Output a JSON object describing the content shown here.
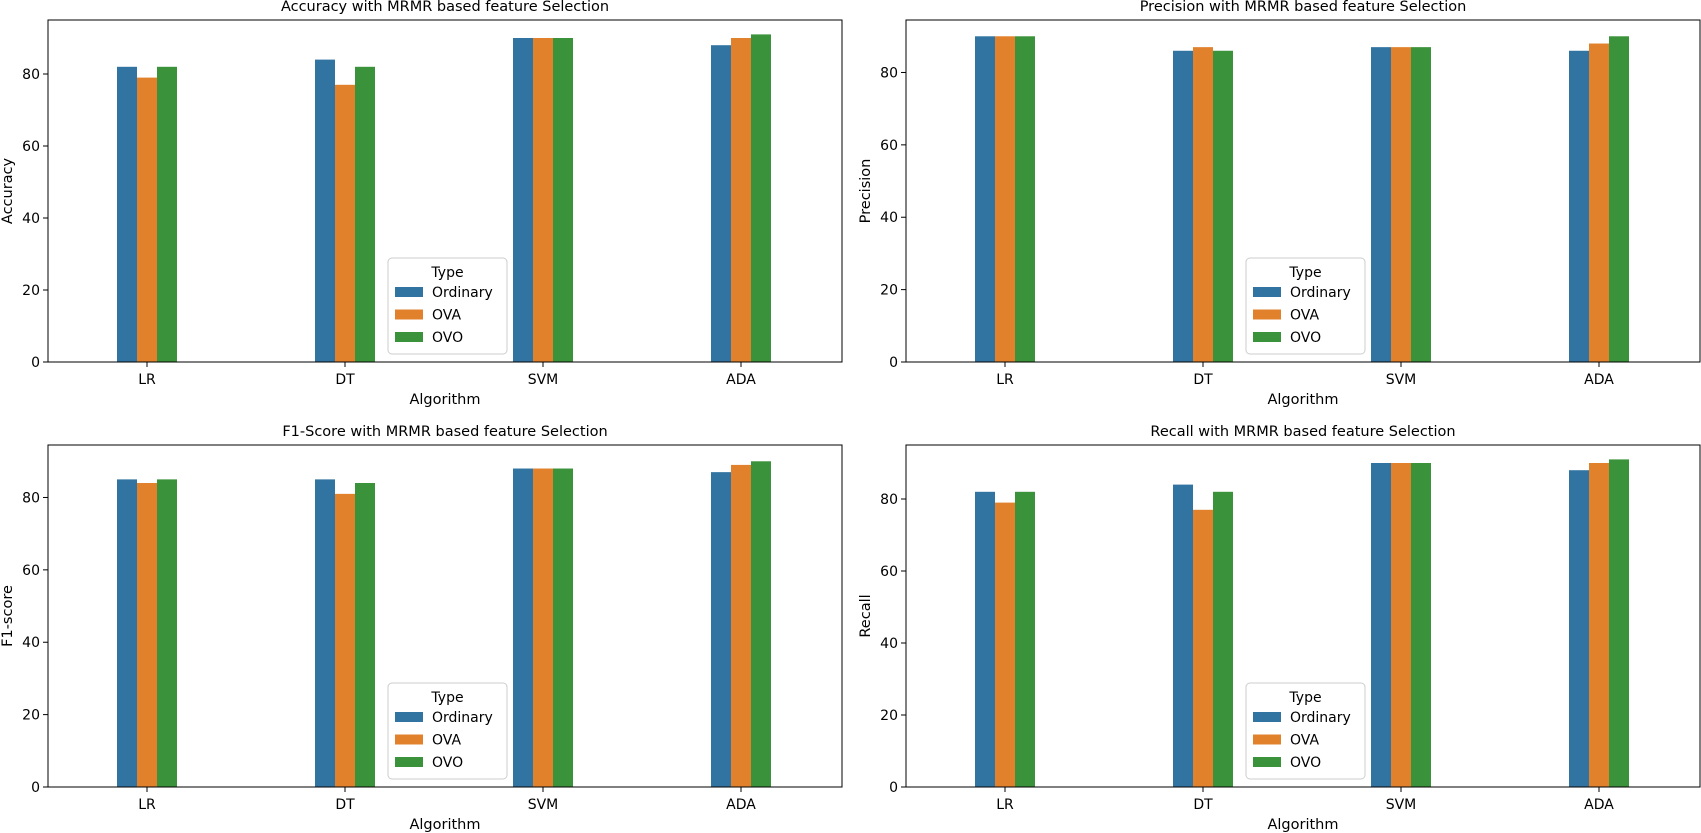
{
  "colors": {
    "Ordinary": "#3274a1",
    "OVA": "#e1812c",
    "OVO": "#3a923a"
  },
  "chart_data": [
    {
      "type": "bar",
      "title": "Accuracy with MRMR based feature Selection",
      "xlabel": "Algorithm",
      "ylabel": "Accuracy",
      "categories": [
        "LR",
        "DT",
        "SVM",
        "ADA"
      ],
      "ylim": [
        0,
        95
      ],
      "yticks": [
        "0",
        "20",
        "40",
        "60",
        "80"
      ],
      "legend": {
        "title": "Type",
        "position": "lower center"
      },
      "grid": false,
      "series": [
        {
          "name": "Ordinary",
          "values": [
            82,
            84,
            90,
            88
          ]
        },
        {
          "name": "OVA",
          "values": [
            79,
            77,
            90,
            90
          ]
        },
        {
          "name": "OVO",
          "values": [
            82,
            82,
            90,
            91
          ]
        }
      ]
    },
    {
      "type": "bar",
      "title": "Precision with MRMR based feature Selection",
      "xlabel": "Algorithm",
      "ylabel": "Precision",
      "categories": [
        "LR",
        "DT",
        "SVM",
        "ADA"
      ],
      "ylim": [
        0,
        94.5
      ],
      "yticks": [
        "0",
        "20",
        "40",
        "60",
        "80"
      ],
      "legend": {
        "title": "Type",
        "position": "lower center"
      },
      "grid": false,
      "series": [
        {
          "name": "Ordinary",
          "values": [
            90,
            86,
            87,
            86
          ]
        },
        {
          "name": "OVA",
          "values": [
            90,
            87,
            87,
            88
          ]
        },
        {
          "name": "OVO",
          "values": [
            90,
            86,
            87,
            90
          ]
        }
      ]
    },
    {
      "type": "bar",
      "title": "F1-Score with MRMR based feature Selection",
      "xlabel": "Algorithm",
      "ylabel": "F1-score",
      "categories": [
        "LR",
        "DT",
        "SVM",
        "ADA"
      ],
      "ylim": [
        0,
        94.5
      ],
      "yticks": [
        "0",
        "20",
        "40",
        "60",
        "80"
      ],
      "legend": {
        "title": "Type",
        "position": "lower center"
      },
      "grid": false,
      "series": [
        {
          "name": "Ordinary",
          "values": [
            85,
            85,
            88,
            87
          ]
        },
        {
          "name": "OVA",
          "values": [
            84,
            81,
            88,
            89
          ]
        },
        {
          "name": "OVO",
          "values": [
            85,
            84,
            88,
            90
          ]
        }
      ]
    },
    {
      "type": "bar",
      "title": "Recall with MRMR based feature Selection",
      "xlabel": "Algorithm",
      "ylabel": "Recall",
      "categories": [
        "LR",
        "DT",
        "SVM",
        "ADA"
      ],
      "ylim": [
        0,
        95
      ],
      "yticks": [
        "0",
        "20",
        "40",
        "60",
        "80"
      ],
      "legend": {
        "title": "Type",
        "position": "lower center"
      },
      "grid": false,
      "series": [
        {
          "name": "Ordinary",
          "values": [
            82,
            84,
            90,
            88
          ]
        },
        {
          "name": "OVA",
          "values": [
            79,
            77,
            90,
            90
          ]
        },
        {
          "name": "OVO",
          "values": [
            82,
            82,
            90,
            91
          ]
        }
      ]
    }
  ]
}
